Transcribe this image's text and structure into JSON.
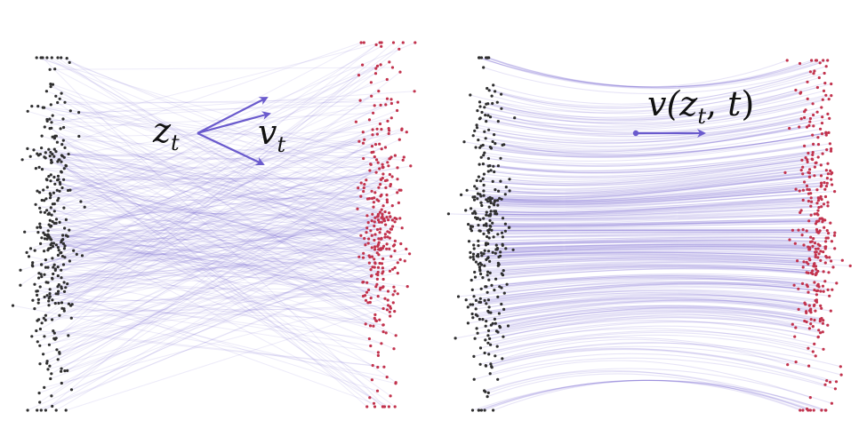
{
  "colors": {
    "background": "#ffffff",
    "source_points": "#2f2f2f",
    "target_points": "#c2334d",
    "trajectory": "#6a5acd",
    "arrow": "#6a5acd"
  },
  "left_panel": {
    "variable_label": "z",
    "variable_subscript": "t",
    "velocity_label": "v",
    "velocity_subscript": "t",
    "trajectory_style": "crossing straight lines"
  },
  "right_panel": {
    "field_label_prefix": "v(",
    "field_label_var": "z",
    "field_label_sub": "t",
    "field_label_sep": ", ",
    "field_label_time": "t",
    "field_label_suffix": ")",
    "trajectory_style": "non-crossing smooth flows"
  },
  "icons": {
    "velocity_arrows": "arrow-right-icon",
    "flow_arrow": "arrow-right-icon"
  }
}
